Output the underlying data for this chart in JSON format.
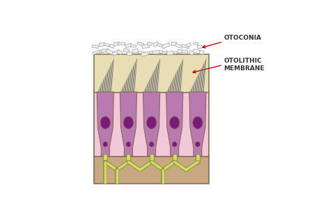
{
  "bg_color": "#ffffff",
  "otoconia_color": "#f0f0f0",
  "otoconia_stroke": "#aaaaaa",
  "membrane_color": "#e8ddb5",
  "membrane_stroke": "#8a7a50",
  "cell_bg_color": "#f0c8d8",
  "hair_cell_body_color": "#c090b8",
  "hair_cell_purple": "#b87ab0",
  "nucleus_color": "#7a1a7a",
  "nerve_color": "#d0e060",
  "nerve_stroke": "#909040",
  "basal_color": "#c8a882",
  "basal_stroke": "#8a6a50",
  "stereocilia_color": "#707070",
  "label_otoconia": "OTOCONIA",
  "label_membrane_1": "OTOLITHIC",
  "label_membrane_2": "MEMBRANE",
  "arrow_color": "#cc0000",
  "label_color": "#333333",
  "label_fontsize": 6.5,
  "n_hair_cells": 5,
  "figsize": [
    4.74,
    2.99
  ],
  "dpi": 100,
  "xlim": [
    0,
    10
  ],
  "ylim": [
    0,
    10
  ]
}
